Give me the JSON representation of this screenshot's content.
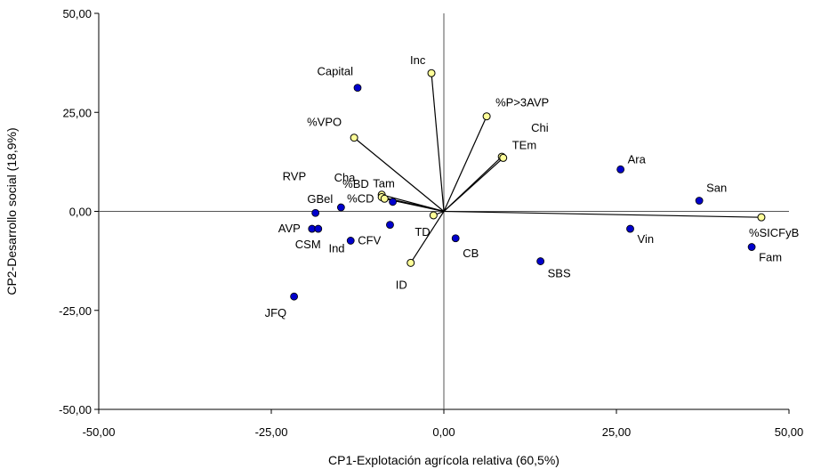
{
  "chart_data": {
    "type": "scatter",
    "xlabel": "CP1-Explotación agrícola relativa (60,5%)",
    "ylabel": "CP2-Desarrollo social (18,9%)",
    "xlim": [
      -50,
      50
    ],
    "ylim": [
      -50,
      50
    ],
    "xticks": [
      -50,
      -25,
      0,
      25,
      50
    ],
    "yticks": [
      -50,
      -25,
      0,
      25,
      50
    ],
    "xtick_labels": [
      "-50,00",
      "-25,00",
      "0,00",
      "25,00",
      "50,00"
    ],
    "ytick_labels": [
      "-50,00",
      "-25,00",
      "0,00",
      "25,00",
      "50,00"
    ],
    "grid": false,
    "reference_lines": [
      "x=0",
      "y=0"
    ],
    "series": [
      {
        "kind": "observations",
        "color": "#0000cc",
        "points": [
          {
            "label": "Capital",
            "x": -12.5,
            "y": 31.2
          },
          {
            "label": "Ara",
            "x": 25.6,
            "y": 10.6
          },
          {
            "label": "San",
            "x": 37.0,
            "y": 2.7
          },
          {
            "label": "Vin",
            "x": 27.0,
            "y": -4.4
          },
          {
            "label": "Fam",
            "x": 44.6,
            "y": -9.0
          },
          {
            "label": "SBS",
            "x": 14.0,
            "y": -12.6
          },
          {
            "label": "CB",
            "x": 1.7,
            "y": -6.8
          },
          {
            "label": "Cha",
            "x": -7.4,
            "y": 2.4
          },
          {
            "label": "GBel",
            "x": -14.9,
            "y": 1.0
          },
          {
            "label": "RVP",
            "x": -18.6,
            "y": -0.4
          },
          {
            "label": "AVP",
            "x": -19.1,
            "y": -4.4
          },
          {
            "label": "CSM",
            "x": -18.2,
            "y": -4.4
          },
          {
            "label": "CFV",
            "x": -13.5,
            "y": -7.4
          },
          {
            "label": "Ind",
            "x": -7.8,
            "y": -3.4
          },
          {
            "label": "JFQ",
            "x": -21.7,
            "y": -21.5
          }
        ]
      },
      {
        "kind": "variables",
        "color": "#ffff99",
        "points": [
          {
            "label": "Inc",
            "x": -1.8,
            "y": 34.9
          },
          {
            "label": "%P>3AVP",
            "x": 6.2,
            "y": 24.0
          },
          {
            "label": "%VPO",
            "x": -13.0,
            "y": 18.6
          },
          {
            "label": "Chi",
            "x": 8.4,
            "y": 13.8
          },
          {
            "label": "TEm",
            "x": 8.6,
            "y": 13.5
          },
          {
            "label": "%BD",
            "x": -9.0,
            "y": 4.2
          },
          {
            "label": "%CD",
            "x": -9.0,
            "y": 3.6
          },
          {
            "label": "Tam",
            "x": -8.6,
            "y": 3.2
          },
          {
            "label": "TD",
            "x": -1.5,
            "y": -1.0
          },
          {
            "label": "ID",
            "x": -4.8,
            "y": -13.0
          },
          {
            "label": "%SICFyB",
            "x": 46.0,
            "y": -1.5
          }
        ]
      }
    ]
  }
}
